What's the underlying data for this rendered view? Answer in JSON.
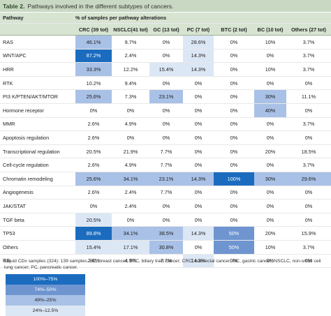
{
  "title": {
    "number": "Table 2.",
    "text": "Pathways involved in the different subtypes of cancers."
  },
  "header": {
    "pathway": "Pathway",
    "group": "% of samples per pathway alterations"
  },
  "columns": [
    "CRC (39 tot)",
    "NSCLC(41 tot)",
    "GC (13 tot)",
    "PC (7 tot)",
    "BTC (2 tot)",
    "BC (10 tot)",
    "Others (27 tot)"
  ],
  "rows": [
    {
      "name": "RAS",
      "values": [
        "46.1%",
        "9.7%",
        "0%",
        "28.6%",
        "0%",
        "10%",
        "3.7%"
      ],
      "shades": [
        3,
        0,
        0,
        4,
        0,
        0,
        0
      ]
    },
    {
      "name": "WNT/APC",
      "values": [
        "87.2%",
        "2.4%",
        "0%",
        "14.3%",
        "0%",
        "0%",
        "3.7%"
      ],
      "shades": [
        1,
        0,
        0,
        4,
        0,
        0,
        0
      ]
    },
    {
      "name": "HRR",
      "values": [
        "33.3%",
        "12.2%",
        "15.4%",
        "14.3%",
        "0%",
        "10%",
        "3.7%"
      ],
      "shades": [
        3,
        0,
        4,
        4,
        0,
        0,
        0
      ]
    },
    {
      "name": "RTK",
      "values": [
        "10.2%",
        "9.4%",
        "0%",
        "0%",
        "0%",
        "0%",
        "0%"
      ],
      "shades": [
        0,
        0,
        0,
        0,
        0,
        0,
        0
      ]
    },
    {
      "name": "PI3 K/PTEN/AKT/MTOR",
      "values": [
        "25.6%",
        "7.3%",
        "23.1%",
        "0%",
        "0%",
        "30%",
        "11.1%"
      ],
      "shades": [
        3,
        0,
        3,
        0,
        0,
        3,
        0
      ]
    },
    {
      "name": "Hormone receptor",
      "values": [
        "0%",
        "0%",
        "0%",
        "0%",
        "0%",
        "40%",
        "0%"
      ],
      "shades": [
        0,
        0,
        0,
        0,
        0,
        3,
        0
      ]
    },
    {
      "name": "MMR",
      "values": [
        "2.6%",
        "4.9%",
        "0%",
        "0%",
        "0%",
        "0%",
        "3.7%"
      ],
      "shades": [
        0,
        0,
        0,
        0,
        0,
        0,
        0
      ]
    },
    {
      "name": "Apoptosis regulation",
      "values": [
        "2.6%",
        "0%",
        "0%",
        "0%",
        "0%",
        "0%",
        "0%"
      ],
      "shades": [
        0,
        0,
        0,
        0,
        0,
        0,
        0
      ]
    },
    {
      "name": "Transcriptional regulation",
      "values": [
        "20.5%",
        "21.9%",
        "7.7%",
        "0%",
        "0%",
        "20%",
        "18.5%"
      ],
      "shades": [
        0,
        0,
        0,
        0,
        0,
        0,
        0
      ]
    },
    {
      "name": "Cell-cycle regulation",
      "values": [
        "2.6%",
        "4.9%",
        "7.7%",
        "0%",
        "0%",
        "0%",
        "3.7%"
      ],
      "shades": [
        0,
        0,
        0,
        0,
        0,
        0,
        0
      ]
    },
    {
      "name": "Chromatin remodeling",
      "values": [
        "25.6%",
        "34.1%",
        "23.1%",
        "14.3%",
        "100%",
        "30%",
        "29.6%"
      ],
      "shades": [
        3,
        3,
        3,
        3,
        1,
        3,
        3
      ]
    },
    {
      "name": "Angiogenesis",
      "values": [
        "2.6%",
        "2.4%",
        "7.7%",
        "0%",
        "0%",
        "0%",
        "0%"
      ],
      "shades": [
        0,
        0,
        0,
        0,
        0,
        0,
        0
      ]
    },
    {
      "name": "JAK/STAT",
      "values": [
        "0%",
        "2.4%",
        "0%",
        "0%",
        "0%",
        "0%",
        "0%"
      ],
      "shades": [
        0,
        0,
        0,
        0,
        0,
        0,
        0
      ]
    },
    {
      "name": "TGF beta",
      "values": [
        "20.5%",
        "0%",
        "0%",
        "0%",
        "0%",
        "0%",
        "0%"
      ],
      "shades": [
        4,
        0,
        0,
        0,
        0,
        0,
        0
      ]
    },
    {
      "name": "TP53",
      "values": [
        "89.8%",
        "34.1%",
        "38.5%",
        "14.3%",
        "50%",
        "20%",
        "15.9%"
      ],
      "shades": [
        1,
        3,
        3,
        4,
        2,
        0,
        0
      ]
    },
    {
      "name": "Others",
      "values": [
        "15.4%",
        "17.1%",
        "30.8%",
        "0%",
        "50%",
        "10%",
        "3.7%"
      ],
      "shades": [
        4,
        4,
        3,
        0,
        2,
        0,
        0
      ]
    },
    {
      "name": "RB",
      "values": [
        "2.6%",
        "4.9%",
        "7.7%",
        "14.3%",
        "0%",
        "0%",
        "0%"
      ],
      "shades": [
        0,
        0,
        0,
        4,
        0,
        0,
        0
      ]
    }
  ],
  "notes": "Liquid CDx samples (324): 139 samples. BC, breast cancer; BTC, biliary tract cancer; CRC, colorectal cancer; GC, gastric cancer; NSCLC, non-small cell lung cancer; PC, pancreatic cancer.",
  "legend": [
    "100%–75%",
    "74%–50%",
    "49%–25%",
    "24%–12.5%"
  ],
  "colors": {
    "shade_1": "#1b6cbf",
    "shade_2": "#6f95d0",
    "shade_3": "#a9c1e6",
    "shade_4": "#dce7f5",
    "header_bg": "#d7e4d2",
    "title_bg": "#c9d8c3"
  }
}
